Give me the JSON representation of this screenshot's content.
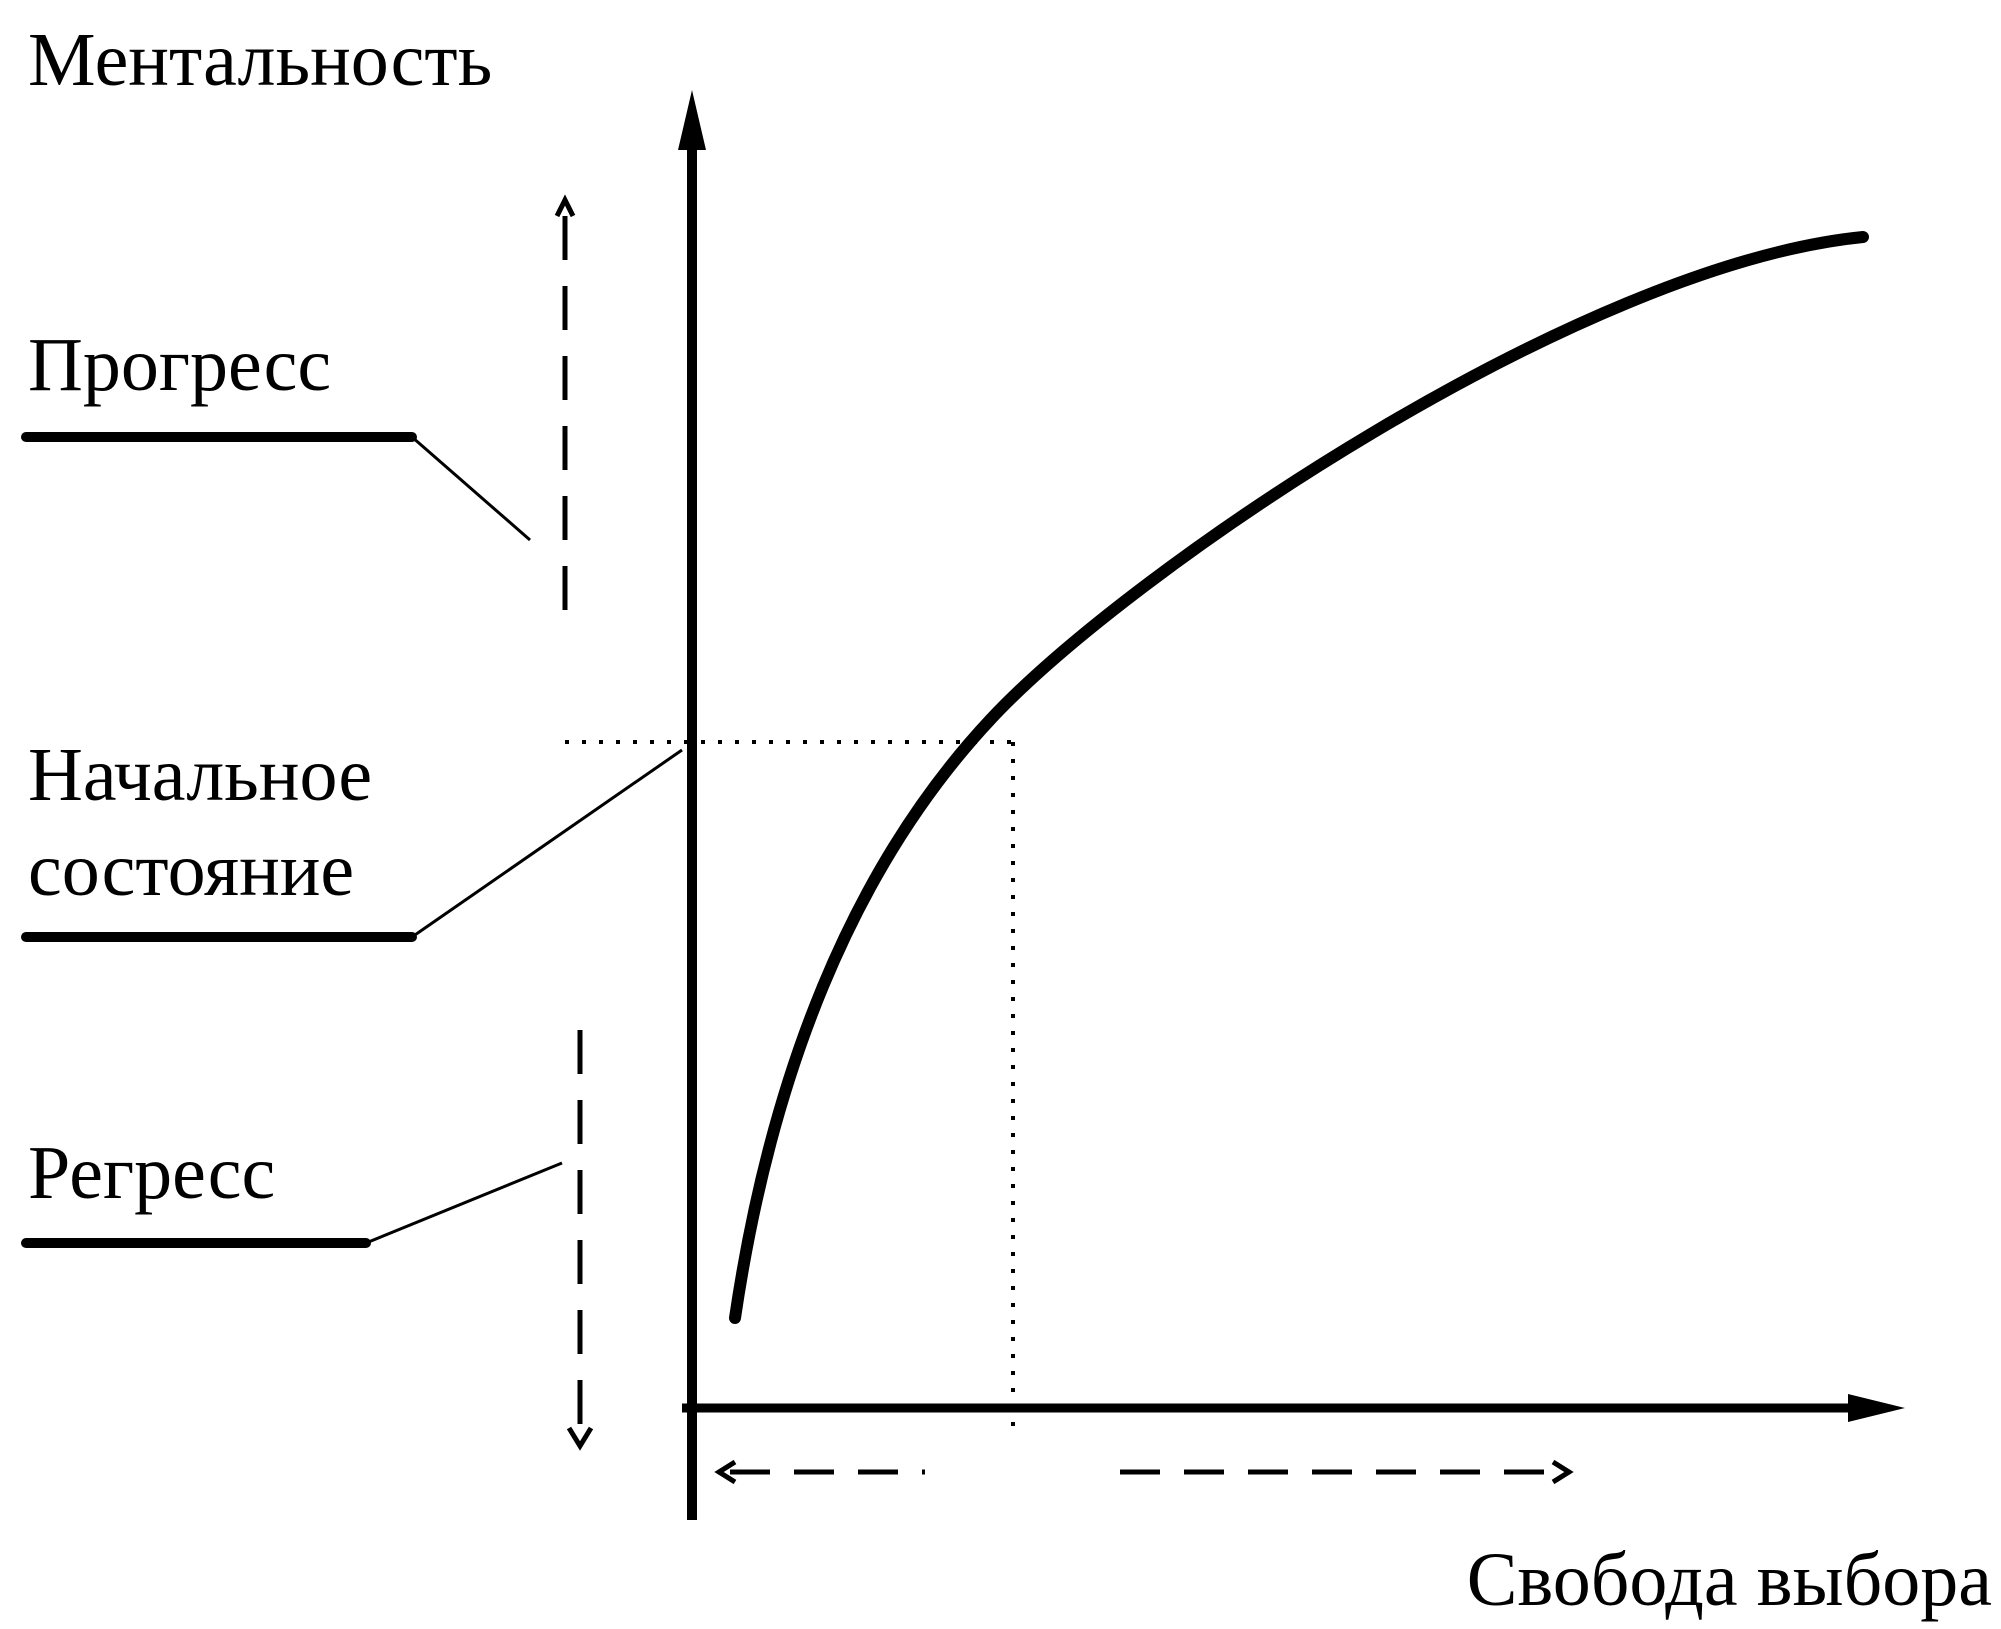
{
  "axis_labels": {
    "y": "Ментальность",
    "x": "Свобода выбора"
  },
  "levels": {
    "progress": "Прогресс",
    "initial_line1": "Начальное",
    "initial_line2": "состояние",
    "regress": "Регресс"
  },
  "colors": {
    "ink": "#000000",
    "background": "#ffffff"
  }
}
